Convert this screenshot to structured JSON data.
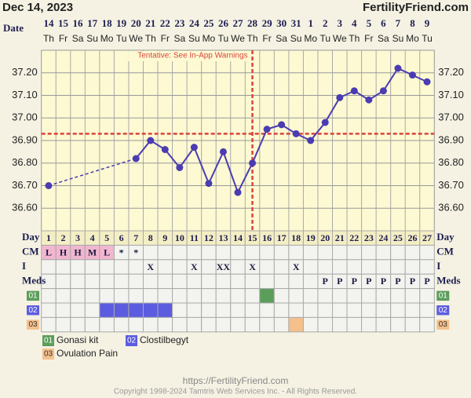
{
  "header": {
    "date": "Dec 14, 2023",
    "brand": "FertilityFriend.com"
  },
  "chart_data": {
    "type": "line",
    "x_label": "Date",
    "categories": [
      "14",
      "15",
      "16",
      "17",
      "18",
      "19",
      "20",
      "21",
      "22",
      "23",
      "24",
      "25",
      "26",
      "27",
      "28",
      "29",
      "30",
      "31",
      "1",
      "2",
      "3",
      "4",
      "5",
      "6",
      "7",
      "8",
      "9"
    ],
    "weekdays": [
      "Th",
      "Fr",
      "Sa",
      "Su",
      "Mo",
      "Tu",
      "We",
      "Th",
      "Fr",
      "Sa",
      "Su",
      "Mo",
      "Tu",
      "We",
      "Th",
      "Fr",
      "Sa",
      "Su",
      "Mo",
      "Tu",
      "We",
      "Th",
      "Fr",
      "Sa",
      "Su",
      "Mo",
      "Tu"
    ],
    "series": [
      {
        "color": "#4a3cb2",
        "values": [
          36.7,
          null,
          null,
          null,
          null,
          null,
          36.82,
          36.9,
          36.86,
          36.78,
          36.87,
          36.71,
          36.85,
          36.67,
          36.8,
          36.95,
          36.97,
          36.93,
          36.9,
          36.98,
          37.09,
          37.12,
          37.08,
          37.12,
          37.22,
          37.19,
          37.16
        ]
      }
    ],
    "ylim": [
      36.5,
      37.3
    ],
    "yticks": [
      {
        "value": 36.6,
        "label": "36.60"
      },
      {
        "value": 36.7,
        "label": "36.70"
      },
      {
        "value": 36.8,
        "label": "36.80"
      },
      {
        "value": 36.9,
        "label": "36.90"
      },
      {
        "value": 37.0,
        "label": "37.00"
      },
      {
        "value": 37.1,
        "label": "37.10"
      },
      {
        "value": 37.2,
        "label": "37.20"
      }
    ],
    "grid": true,
    "coverline": {
      "value": 36.93,
      "label": "Tentative: See In-App Warnings",
      "color": "#d8443c"
    },
    "ovulation_day": 15
  },
  "rows": [
    {
      "label": "Day",
      "cells": [
        1,
        2,
        3,
        4,
        5,
        6,
        7,
        8,
        9,
        10,
        11,
        12,
        13,
        14,
        15,
        16,
        17,
        18,
        19,
        20,
        21,
        22,
        23,
        24,
        25,
        26,
        27
      ]
    },
    {
      "label": "CM",
      "cells": [
        "L",
        "H",
        "H",
        "M",
        "L",
        "*",
        "*",
        null,
        null,
        null,
        null,
        null,
        null,
        null,
        null,
        null,
        null,
        null,
        null,
        null,
        null,
        null,
        null,
        null,
        null,
        null,
        null
      ],
      "marked": [
        1,
        2,
        3,
        4,
        5
      ],
      "color": "#f2b6cf"
    },
    {
      "label": "I",
      "cells": [
        null,
        null,
        null,
        null,
        null,
        null,
        null,
        "X",
        null,
        null,
        "X",
        null,
        "XX",
        null,
        "X",
        null,
        null,
        "X",
        null,
        null,
        null,
        null,
        null,
        null,
        null,
        null,
        null
      ]
    },
    {
      "label": "Meds",
      "cells": [
        null,
        null,
        null,
        null,
        null,
        null,
        null,
        null,
        null,
        null,
        null,
        null,
        null,
        null,
        null,
        null,
        null,
        null,
        null,
        "P",
        "P",
        "P",
        "P",
        "P",
        "P",
        "P",
        "P"
      ]
    },
    {
      "label": "01",
      "marked": [
        16
      ],
      "color": "#5b9e5b"
    },
    {
      "label": "02",
      "marked": [
        5,
        6,
        7,
        8,
        9
      ],
      "color": "#5c5ce0"
    },
    {
      "label": "03",
      "marked": [
        18
      ],
      "color": "#f5c08c"
    }
  ],
  "legend": [
    {
      "code": "01",
      "name": "Gonasi kit",
      "color": "#5b9e5b"
    },
    {
      "code": "02",
      "name": "Clostilbegyt",
      "color": "#5c5ce0"
    },
    {
      "code": "03",
      "name": "Ovulation Pain",
      "color": "#f5c08c"
    }
  ],
  "footer": {
    "url": "https://FertilityFriend.com",
    "copyright": "Copyright 1998-2024 Tamtris Web Services Inc. - All Rights Reserved."
  }
}
